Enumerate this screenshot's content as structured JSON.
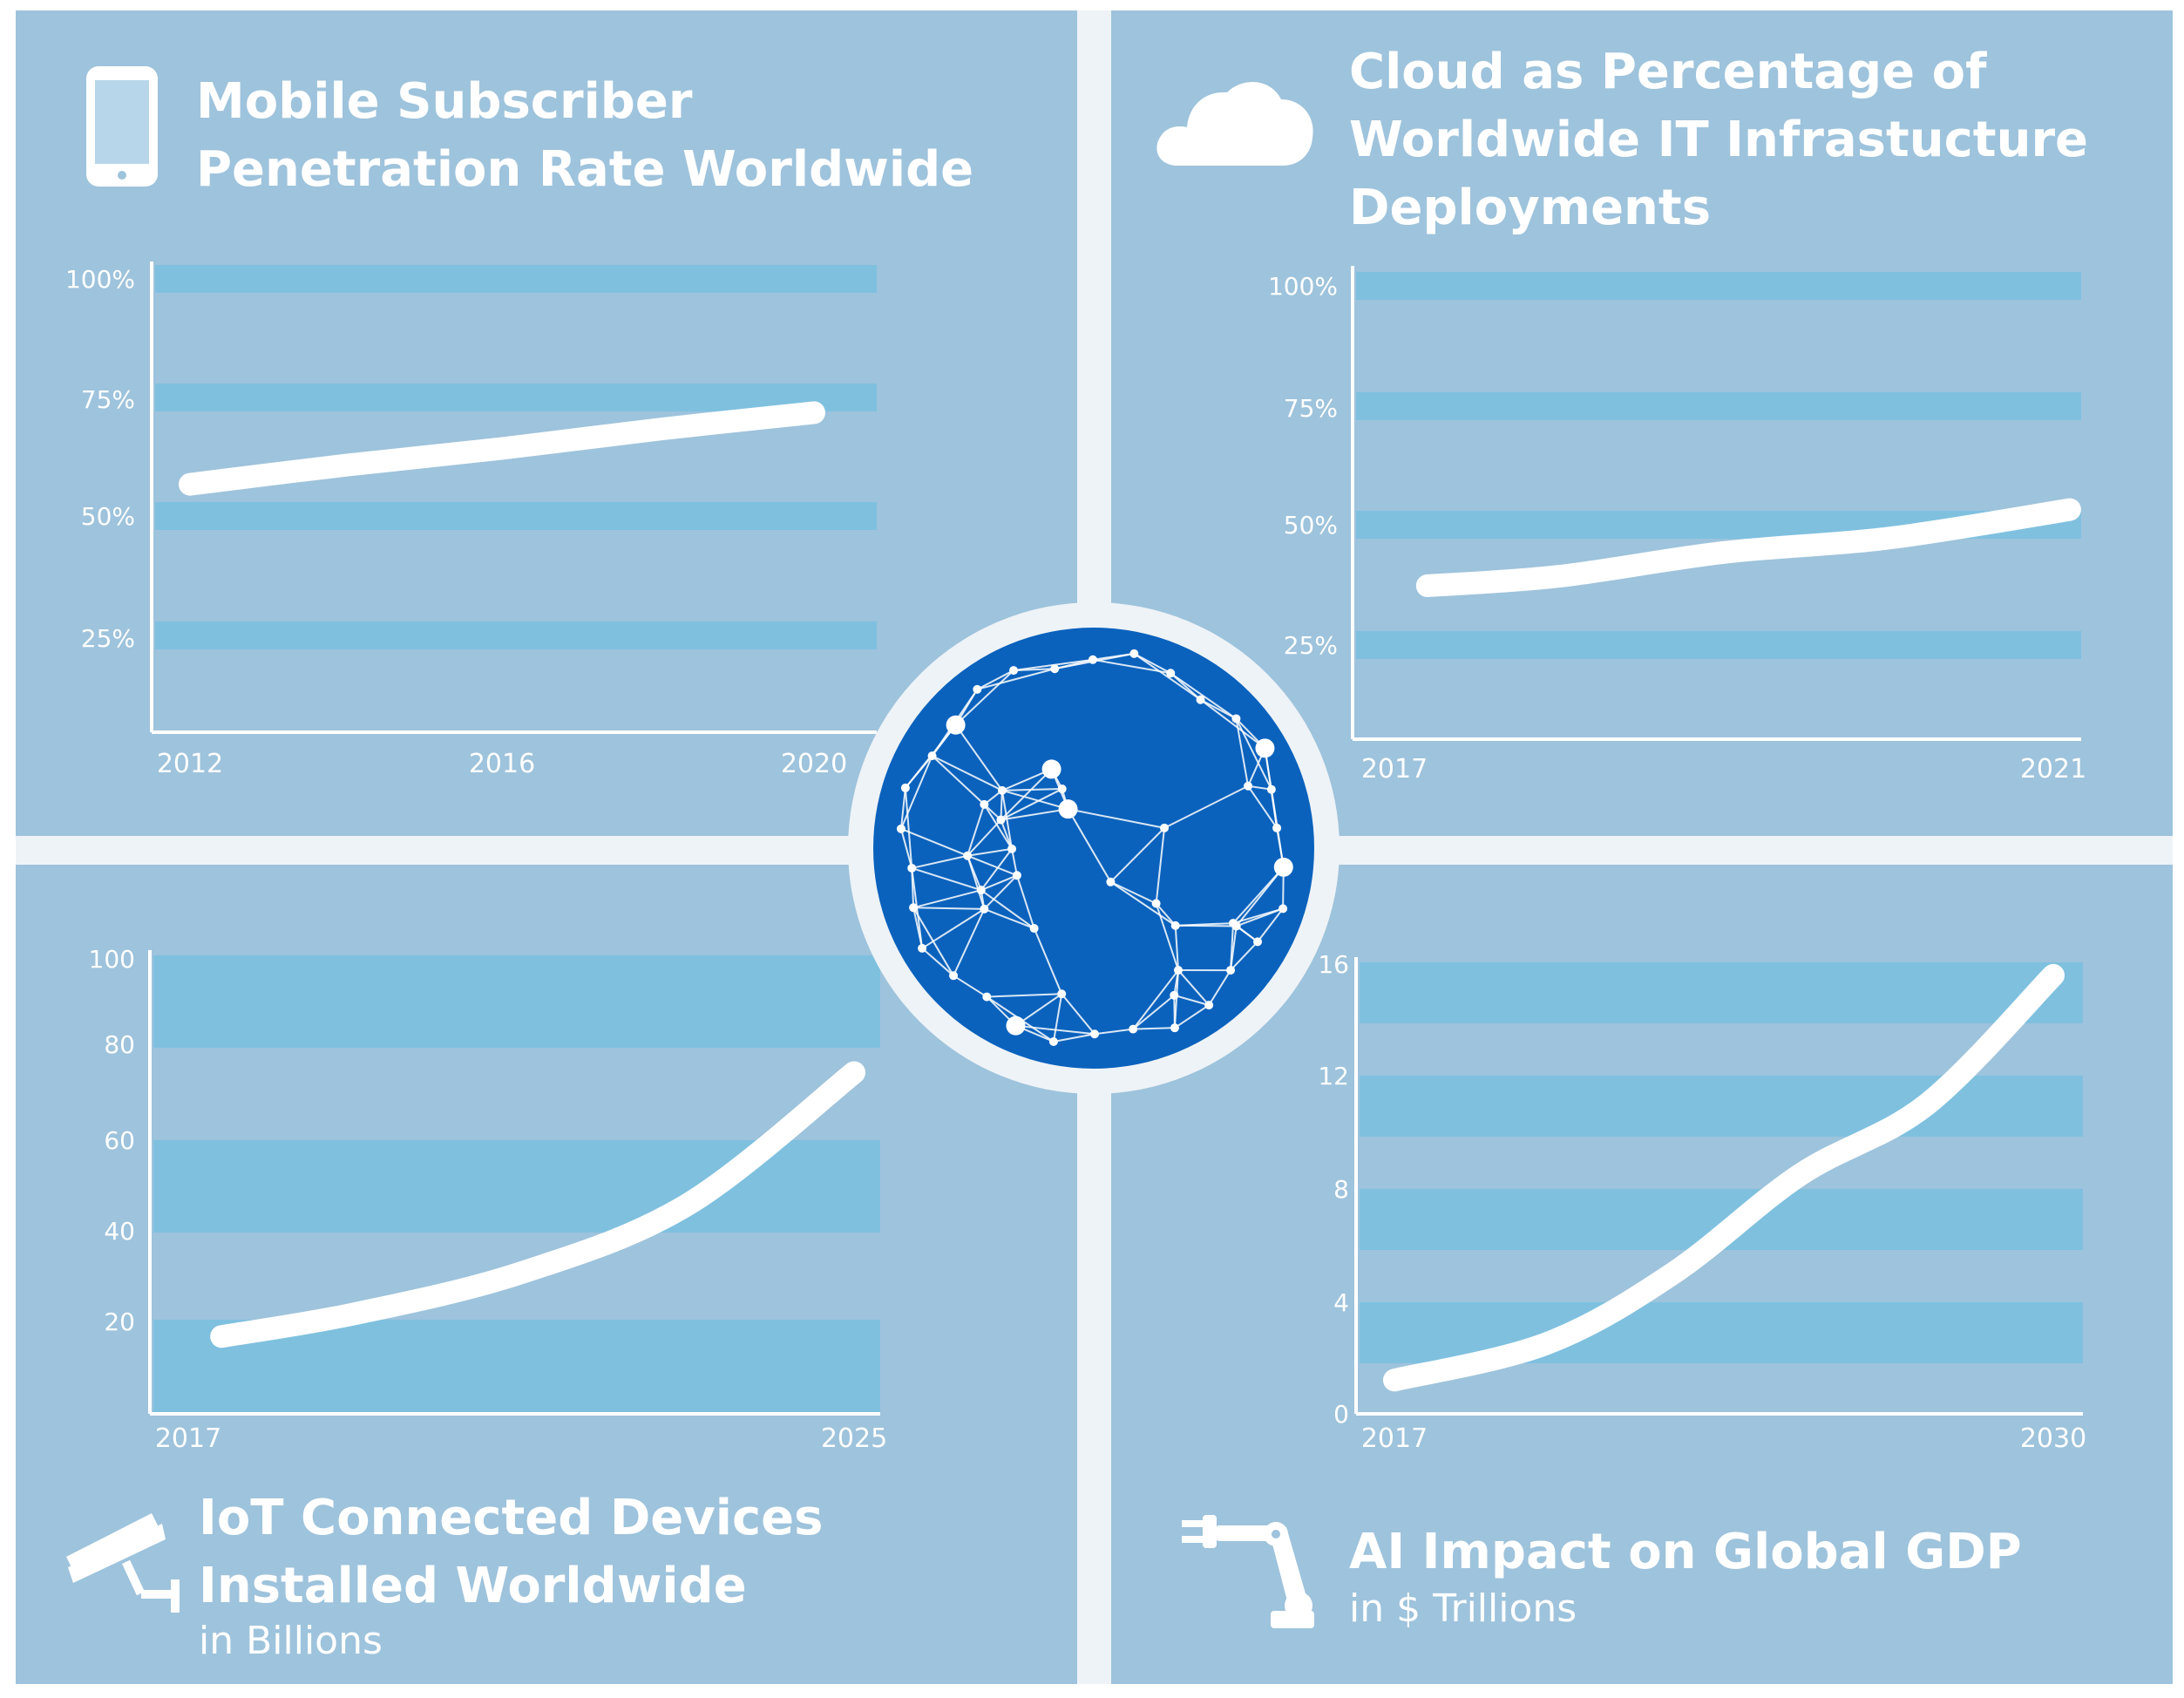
{
  "colors": {
    "background": "#9ec3dc",
    "band": "#7fc0df",
    "line": "#ffffff",
    "axis": "#ffffff",
    "tick_text": "#ffffff",
    "globe": "#0a62bd",
    "divider": "#eef3f7"
  },
  "panels": {
    "mobile": {
      "title_lines": [
        "Mobile Subscriber",
        "Penetration Rate Worldwide"
      ],
      "icon": "smartphone-icon"
    },
    "cloud": {
      "title_lines": [
        "Cloud as Percentage of",
        "Worldwide IT Infrastucture",
        "Deployments"
      ],
      "icon": "cloud-icon"
    },
    "iot": {
      "title_lines": [
        "IoT Connected Devices",
        "Installed Worldwide"
      ],
      "subtitle": "in Billions",
      "icon": "security-camera-icon"
    },
    "ai": {
      "title_lines": [
        "AI Impact on Global GDP"
      ],
      "subtitle": "in $ Trillions",
      "icon": "robot-arm-icon"
    }
  },
  "center": {
    "icon": "network-globe-icon"
  },
  "chart_data": [
    {
      "id": "mobile",
      "type": "line",
      "title": "Mobile Subscriber Penetration Rate Worldwide",
      "x_ticks": [
        "2012",
        "2016",
        "2020"
      ],
      "y_ticks": [
        "100%",
        "75%",
        "50%",
        "25%"
      ],
      "ylim": [
        0,
        100
      ],
      "series": [
        {
          "points": [
            [
              2012,
              57
            ],
            [
              2014,
              61
            ],
            [
              2016,
              64.5
            ],
            [
              2018,
              68.5
            ],
            [
              2020,
              72
            ]
          ]
        }
      ],
      "grid": "horizontal bands"
    },
    {
      "id": "cloud",
      "type": "line",
      "title": "Cloud as Percentage of Worldwide IT Infrastucture Deployments",
      "x_ticks": [
        "2017",
        "2021"
      ],
      "y_ticks": [
        "100%",
        "75%",
        "50%",
        "25%"
      ],
      "ylim": [
        0,
        100
      ],
      "series": [
        {
          "points": [
            [
              2017.2,
              37
            ],
            [
              2018,
              39
            ],
            [
              2019,
              44
            ],
            [
              2020,
              47
            ],
            [
              2021.1,
              53
            ]
          ]
        }
      ],
      "grid": "horizontal bands"
    },
    {
      "id": "iot",
      "type": "line",
      "title": "IoT Connected Devices Installed Worldwide",
      "subtitle": "in Billions",
      "x_ticks": [
        "2017",
        "2025"
      ],
      "y_ticks": [
        "100",
        "80",
        "60",
        "40",
        "20"
      ],
      "ylim": [
        0,
        100
      ],
      "series": [
        {
          "points": [
            [
              2017.4,
              17
            ],
            [
              2019,
              22
            ],
            [
              2021,
              31
            ],
            [
              2023,
              46
            ],
            [
              2025,
              75
            ]
          ]
        }
      ],
      "grid": "horizontal bands"
    },
    {
      "id": "ai",
      "type": "line",
      "title": "AI Impact on Global GDP",
      "subtitle": "in $ Trillions",
      "x_ticks": [
        "2017",
        "2030"
      ],
      "y_ticks": [
        "16",
        "12",
        "8",
        "4",
        "0"
      ],
      "ylim": [
        0,
        16
      ],
      "series": [
        {
          "points": [
            [
              2017,
              1.2
            ],
            [
              2020,
              2.5
            ],
            [
              2022.5,
              5
            ],
            [
              2025,
              8.5
            ],
            [
              2027.5,
              11
            ],
            [
              2030,
              15.6
            ]
          ]
        }
      ],
      "grid": "horizontal bands"
    }
  ]
}
